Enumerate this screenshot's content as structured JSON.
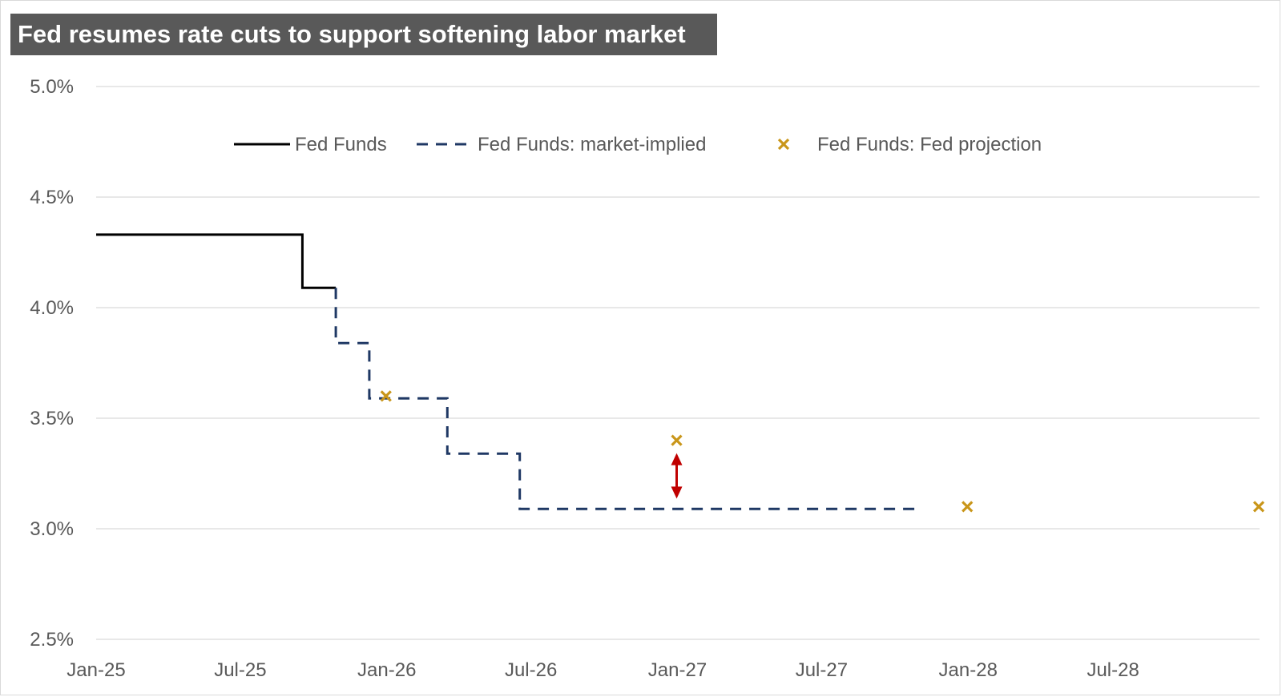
{
  "chart_data": {
    "type": "line",
    "title": "Fed resumes rate cuts to support softening labor market",
    "xlabel": "",
    "ylabel": "",
    "x_axis": {
      "type": "date",
      "range": [
        "2025-01-01",
        "2029-01-01"
      ],
      "ticks": [
        {
          "date": "2025-01-01",
          "label": "Jan-25"
        },
        {
          "date": "2025-07-01",
          "label": "Jul-25"
        },
        {
          "date": "2026-01-01",
          "label": "Jan-26"
        },
        {
          "date": "2026-07-01",
          "label": "Jul-26"
        },
        {
          "date": "2027-01-01",
          "label": "Jan-27"
        },
        {
          "date": "2027-07-01",
          "label": "Jul-27"
        },
        {
          "date": "2028-01-01",
          "label": "Jan-28"
        },
        {
          "date": "2028-07-01",
          "label": "Jul-28"
        }
      ]
    },
    "y_axis": {
      "range": [
        2.5,
        5.0
      ],
      "ticks": [
        {
          "value": 5.0,
          "label": "5.0%"
        },
        {
          "value": 4.5,
          "label": "4.5%"
        },
        {
          "value": 4.0,
          "label": "4.0%"
        },
        {
          "value": 3.5,
          "label": "3.5%"
        },
        {
          "value": 3.0,
          "label": "3.0%"
        },
        {
          "value": 2.5,
          "label": "2.5%"
        }
      ]
    },
    "grid": true,
    "legend_position": "top-center",
    "series": [
      {
        "name": "Fed Funds",
        "style": "solid-step",
        "color": "#000000",
        "points": [
          {
            "x": "2025-01-01",
            "y": 4.33
          },
          {
            "x": "2025-09-17",
            "y": 4.33
          },
          {
            "x": "2025-09-17",
            "y": 4.09
          },
          {
            "x": "2025-10-29",
            "y": 4.09
          }
        ]
      },
      {
        "name": "Fed Funds: market-implied",
        "style": "dashed-step",
        "color": "#1f3864",
        "points": [
          {
            "x": "2025-10-29",
            "y": 4.09
          },
          {
            "x": "2025-10-29",
            "y": 3.84
          },
          {
            "x": "2025-12-10",
            "y": 3.84
          },
          {
            "x": "2025-12-10",
            "y": 3.59
          },
          {
            "x": "2026-03-18",
            "y": 3.59
          },
          {
            "x": "2026-03-18",
            "y": 3.34
          },
          {
            "x": "2026-06-17",
            "y": 3.34
          },
          {
            "x": "2026-06-17",
            "y": 3.09
          },
          {
            "x": "2027-10-31",
            "y": 3.09
          }
        ]
      },
      {
        "name": "Fed Funds: Fed projection",
        "style": "marker-x",
        "color": "#c9961a",
        "points": [
          {
            "x": "2025-12-31",
            "y": 3.6
          },
          {
            "x": "2026-12-31",
            "y": 3.4
          },
          {
            "x": "2027-12-31",
            "y": 3.1
          },
          {
            "x": "2028-12-31",
            "y": 3.1
          }
        ]
      }
    ],
    "annotations": [
      {
        "type": "double-arrow",
        "color": "#c00000",
        "x": "2026-12-31",
        "y_from": 3.1,
        "y_to": 3.4
      }
    ]
  }
}
